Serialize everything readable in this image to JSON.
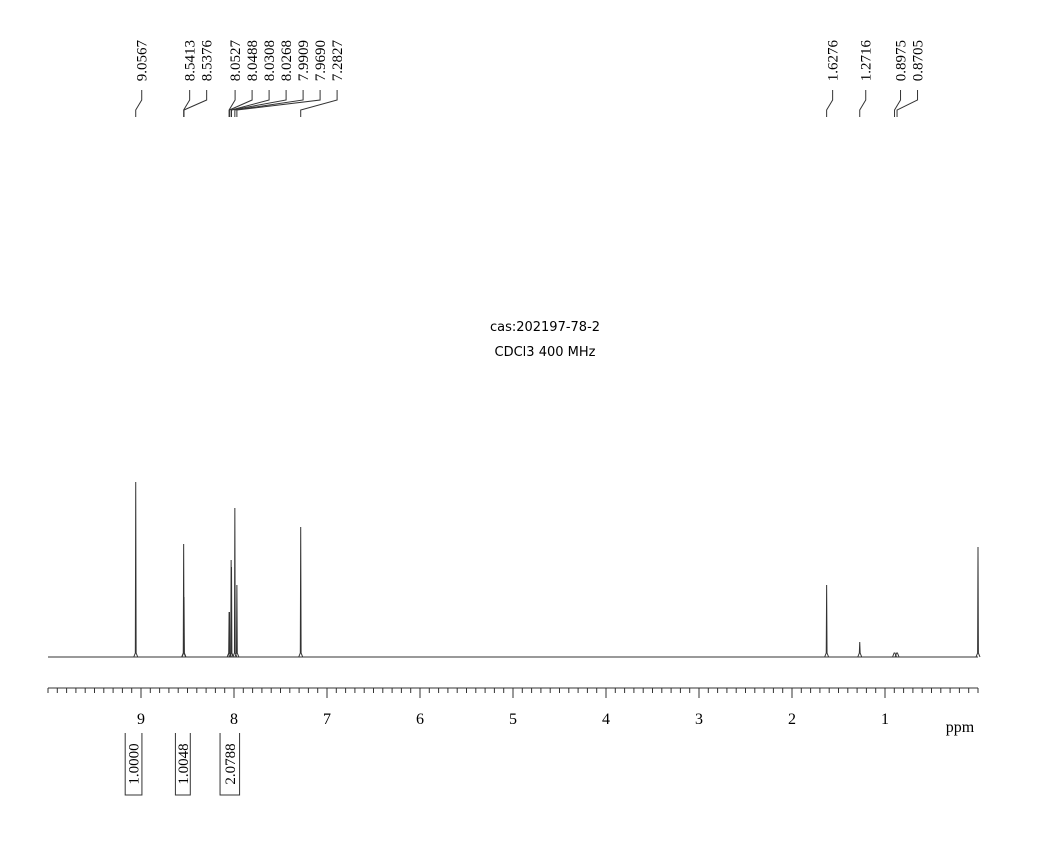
{
  "chart_data": {
    "type": "nmr",
    "annotations": [
      "cas:202197-78-2",
      "CDCl3   400 MHz"
    ],
    "xlabel": "ppm",
    "xlim": [
      10,
      0
    ],
    "xticks": [
      9,
      8,
      7,
      6,
      5,
      4,
      3,
      2,
      1
    ],
    "color": "#333333",
    "x": [
      9.0567,
      8.5413,
      8.5376,
      8.0527,
      8.0488,
      8.0308,
      8.0268,
      7.9909,
      7.969,
      7.2827,
      1.6276,
      1.2716,
      0.8975,
      0.8705,
      0
    ],
    "x_labels": [
      "9.0567",
      "8.5413",
      "8.5376",
      "8.0527",
      "8.0488",
      "8.0308",
      "8.0268",
      "7.9909",
      "7.9690",
      "7.2827",
      "1.6276",
      "1.2716",
      "0.8975",
      "0.8705",
      null
    ],
    "values": [
      175,
      113,
      60,
      45,
      45,
      97,
      90,
      149,
      72,
      130,
      72,
      15,
      4,
      4,
      110
    ],
    "ylim": [
      0,
      200
    ],
    "integrals": {
      "ranges": [
        [
          9.17,
          8.99
        ],
        [
          8.63,
          8.47
        ],
        [
          8.15,
          7.94
        ]
      ],
      "values": [
        1,
        1.0048,
        2.0788
      ],
      "value_labels": [
        "1.0000",
        "1.0048",
        "2.0788"
      ]
    }
  }
}
